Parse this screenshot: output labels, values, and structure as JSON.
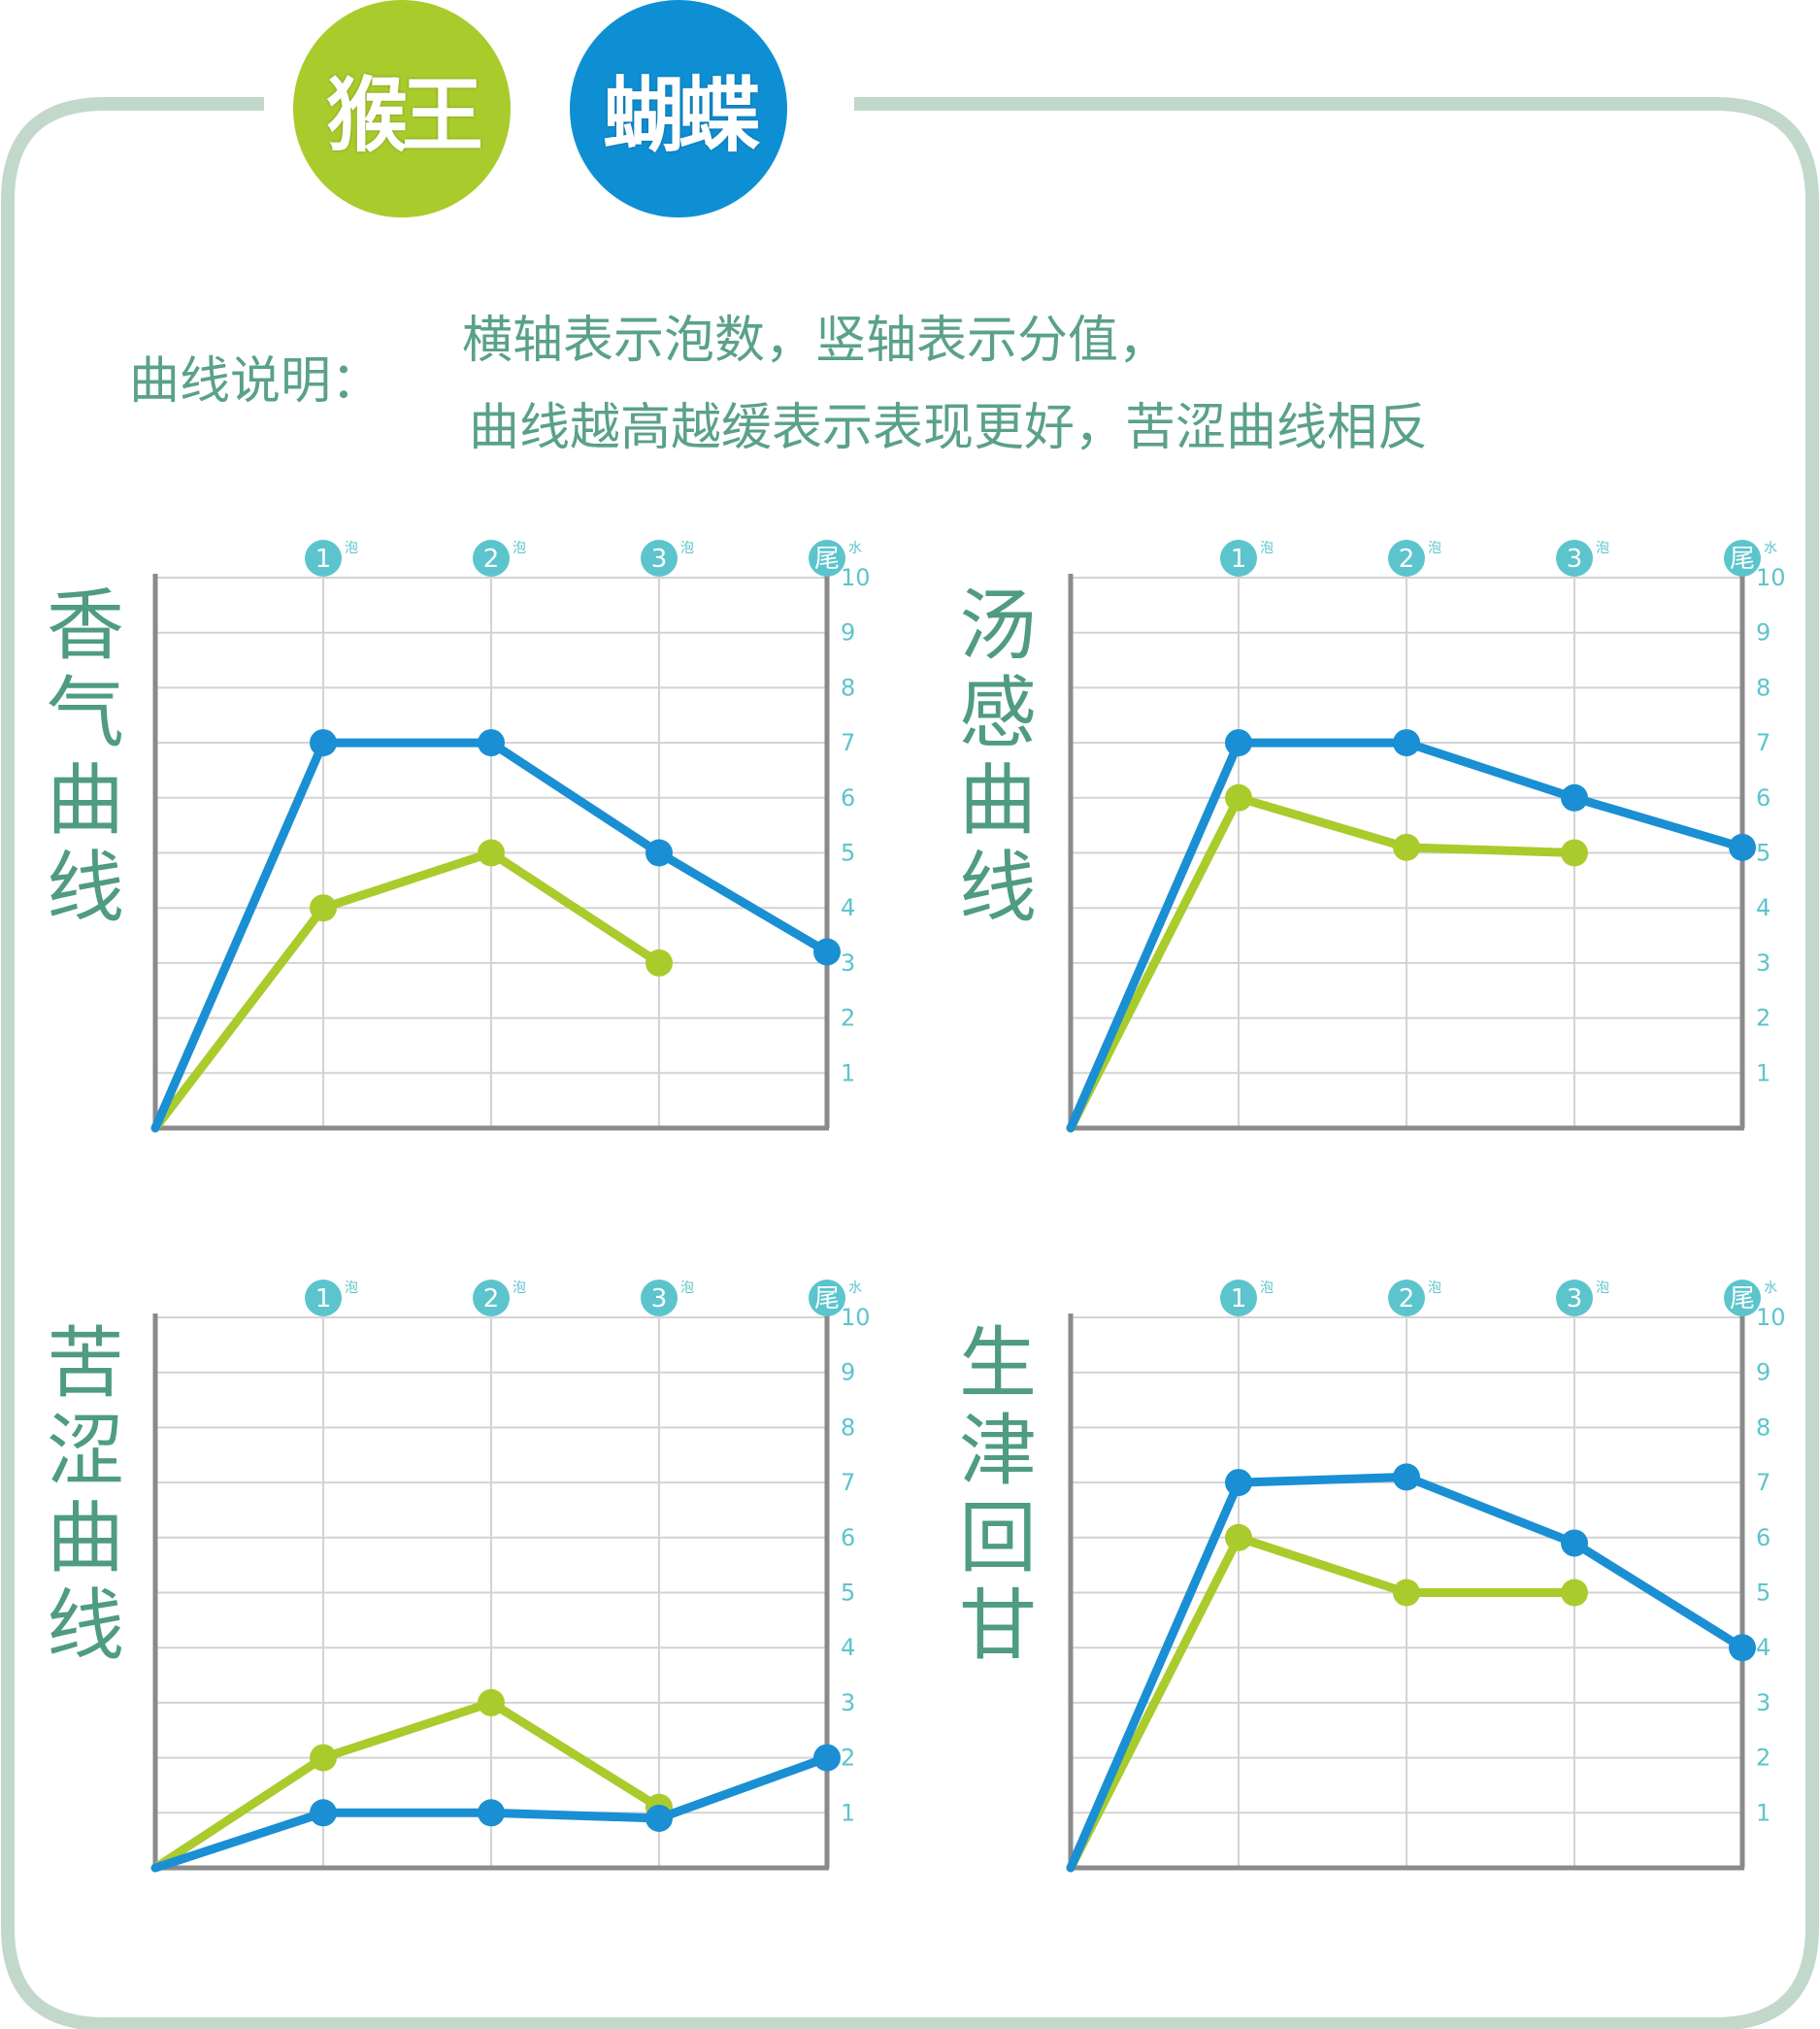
{
  "header": {
    "badges": [
      {
        "label": "猴王",
        "color": "#a9cb2c"
      },
      {
        "label": "蝴蝶",
        "color": "#0f8fd3"
      }
    ]
  },
  "legend": {
    "title": "曲线说明：",
    "line1": "横轴表示泡数，竖轴表示分值，",
    "line2": "曲线越高越缓表示表现更好，苦涩曲线相反"
  },
  "colors": {
    "frame": "#c2d8cb",
    "green_series": "#a9cb2c",
    "blue_series": "#1a8fd3",
    "grid": "#d3d3d3",
    "axis": "#8a8a8a",
    "label": "#5cc4cc",
    "title": "#4f9b84"
  },
  "chart_data": [
    {
      "type": "line",
      "title": "香气曲线",
      "categories": [
        "1",
        "2",
        "3",
        "尾"
      ],
      "category_suffix": [
        "泡",
        "泡",
        "泡",
        "水"
      ],
      "ylim": [
        0,
        10
      ],
      "yticks": [
        "1",
        "2",
        "3",
        "4",
        "5",
        "6",
        "7",
        "8",
        "9",
        "10"
      ],
      "grid": true,
      "series": [
        {
          "color": "#a9cb2c",
          "x": [
            0,
            1,
            2,
            3
          ],
          "values": [
            0,
            4,
            5,
            3
          ]
        },
        {
          "color": "#1a8fd3",
          "x": [
            0,
            1,
            2,
            3,
            4
          ],
          "values": [
            0,
            7,
            7,
            5,
            3.2
          ]
        }
      ]
    },
    {
      "type": "line",
      "title": "汤感曲线",
      "categories": [
        "1",
        "2",
        "3",
        "尾"
      ],
      "category_suffix": [
        "泡",
        "泡",
        "泡",
        "水"
      ],
      "ylim": [
        0,
        10
      ],
      "yticks": [
        "1",
        "2",
        "3",
        "4",
        "5",
        "6",
        "7",
        "8",
        "9",
        "10"
      ],
      "grid": true,
      "series": [
        {
          "color": "#a9cb2c",
          "x": [
            0,
            1,
            2,
            3
          ],
          "values": [
            0,
            6,
            5.1,
            5
          ]
        },
        {
          "color": "#1a8fd3",
          "x": [
            0,
            1,
            2,
            3,
            4
          ],
          "values": [
            0,
            7,
            7,
            6,
            5.1
          ]
        }
      ]
    },
    {
      "type": "line",
      "title": "苦涩曲线",
      "categories": [
        "1",
        "2",
        "3",
        "尾"
      ],
      "category_suffix": [
        "泡",
        "泡",
        "泡",
        "水"
      ],
      "ylim": [
        0,
        10
      ],
      "yticks": [
        "1",
        "2",
        "3",
        "4",
        "5",
        "6",
        "7",
        "8",
        "9",
        "10"
      ],
      "grid": true,
      "series": [
        {
          "color": "#a9cb2c",
          "x": [
            0,
            1,
            2,
            3
          ],
          "values": [
            0,
            2,
            3,
            1.1
          ]
        },
        {
          "color": "#1a8fd3",
          "x": [
            0,
            1,
            2,
            3,
            4
          ],
          "values": [
            0,
            1,
            1,
            0.9,
            2
          ]
        }
      ]
    },
    {
      "type": "line",
      "title": "生津回甘",
      "categories": [
        "1",
        "2",
        "3",
        "尾"
      ],
      "category_suffix": [
        "泡",
        "泡",
        "泡",
        "水"
      ],
      "ylim": [
        0,
        10
      ],
      "yticks": [
        "1",
        "2",
        "3",
        "4",
        "5",
        "6",
        "7",
        "8",
        "9",
        "10"
      ],
      "grid": true,
      "series": [
        {
          "color": "#a9cb2c",
          "x": [
            0,
            1,
            2,
            3
          ],
          "values": [
            0,
            6,
            5,
            5
          ]
        },
        {
          "color": "#1a8fd3",
          "x": [
            0,
            1,
            2,
            3,
            4
          ],
          "values": [
            0,
            7,
            7.1,
            5.9,
            4
          ]
        }
      ]
    }
  ]
}
